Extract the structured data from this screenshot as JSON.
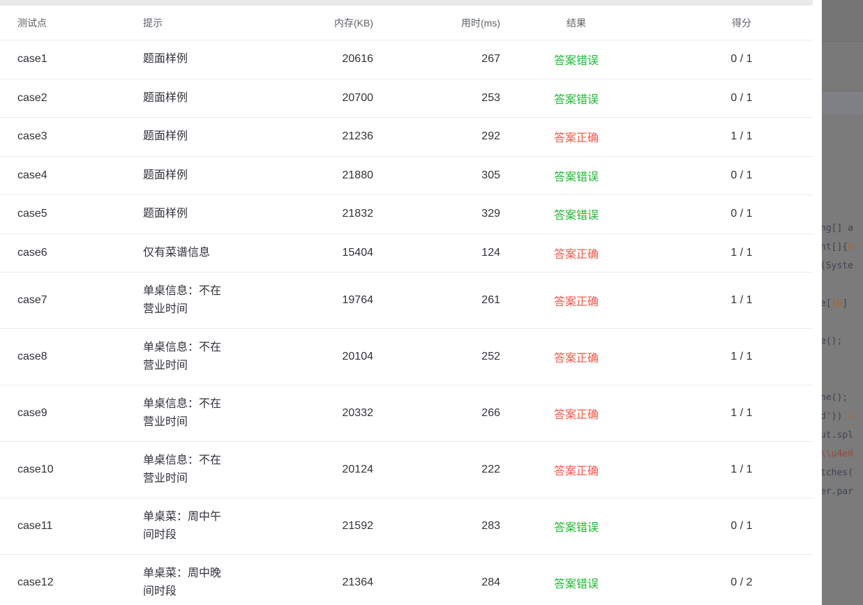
{
  "colors": {
    "wrong": "#1eb932",
    "correct": "#f9554b",
    "header_text": "#5c6066",
    "body_text": "#303238",
    "row_border": "#ececee",
    "panel_gray": "#7b7b7b"
  },
  "table": {
    "columns": [
      {
        "label": "测试点"
      },
      {
        "label": "提示"
      },
      {
        "label": "内存(KB)"
      },
      {
        "label": "用时(ms)"
      },
      {
        "label": "结果"
      },
      {
        "label": "得分"
      }
    ],
    "rows": [
      {
        "case": "case1",
        "hint": "题面样例",
        "memory": "20616",
        "time": "267",
        "result": "答案错误",
        "status": "wrong",
        "score": "0 / 1"
      },
      {
        "case": "case2",
        "hint": "题面样例",
        "memory": "20700",
        "time": "253",
        "result": "答案错误",
        "status": "wrong",
        "score": "0 / 1"
      },
      {
        "case": "case3",
        "hint": "题面样例",
        "memory": "21236",
        "time": "292",
        "result": "答案正确",
        "status": "correct",
        "score": "1 / 1"
      },
      {
        "case": "case4",
        "hint": "题面样例",
        "memory": "21880",
        "time": "305",
        "result": "答案错误",
        "status": "wrong",
        "score": "0 / 1"
      },
      {
        "case": "case5",
        "hint": "题面样例",
        "memory": "21832",
        "time": "329",
        "result": "答案错误",
        "status": "wrong",
        "score": "0 / 1"
      },
      {
        "case": "case6",
        "hint": "仅有菜谱信息",
        "memory": "15404",
        "time": "124",
        "result": "答案正确",
        "status": "correct",
        "score": "1 / 1"
      },
      {
        "case": "case7",
        "hint": "单桌信息：不在\n营业时间",
        "memory": "19764",
        "time": "261",
        "result": "答案正确",
        "status": "correct",
        "score": "1 / 1"
      },
      {
        "case": "case8",
        "hint": "单桌信息：不在\n营业时间",
        "memory": "20104",
        "time": "252",
        "result": "答案正确",
        "status": "correct",
        "score": "1 / 1"
      },
      {
        "case": "case9",
        "hint": "单桌信息：不在\n营业时间",
        "memory": "20332",
        "time": "266",
        "result": "答案正确",
        "status": "correct",
        "score": "1 / 1"
      },
      {
        "case": "case10",
        "hint": "单桌信息：不在\n营业时间",
        "memory": "20124",
        "time": "222",
        "result": "答案正确",
        "status": "correct",
        "score": "1 / 1"
      },
      {
        "case": "case11",
        "hint": "单桌菜：周中午\n间时段",
        "memory": "21592",
        "time": "283",
        "result": "答案错误",
        "status": "wrong",
        "score": "0 / 1"
      },
      {
        "case": "case12",
        "hint": "单桌菜：周中晚\n间时段",
        "memory": "21364",
        "time": "284",
        "result": "答案错误",
        "status": "wrong",
        "score": "0 / 2"
      }
    ]
  },
  "code_panel": {
    "lines": [
      {
        "seg": [
          [
            "ng[] a",
            "c"
          ]
        ]
      },
      {
        "seg": [
          [
            "nt[]{",
            "c"
          ],
          [
            "0",
            "n"
          ]
        ]
      },
      {
        "seg": [
          [
            "(Syste",
            "c"
          ]
        ]
      },
      {
        "seg": []
      },
      {
        "seg": [
          [
            "e[",
            "c"
          ],
          [
            "10",
            "n"
          ],
          [
            "]",
            "c"
          ]
        ]
      },
      {
        "seg": []
      },
      {
        "seg": [
          [
            "e();",
            "c"
          ]
        ]
      },
      {
        "seg": []
      },
      {
        "seg": []
      },
      {
        "seg": [
          [
            "ne();",
            "c"
          ]
        ]
      },
      {
        "seg": [
          [
            "d",
            "c"
          ],
          [
            "\"",
            "s"
          ],
          [
            "))",
            "c"
          ],
          [
            " +",
            "n"
          ]
        ]
      },
      {
        "seg": [
          [
            "ut.spl",
            "c"
          ]
        ]
      },
      {
        "seg": [
          [
            "\\\\u4e0",
            "s"
          ]
        ]
      },
      {
        "seg": [
          [
            "tches(",
            "c"
          ]
        ]
      },
      {
        "seg": [
          [
            "er.par",
            "c"
          ]
        ]
      }
    ]
  }
}
